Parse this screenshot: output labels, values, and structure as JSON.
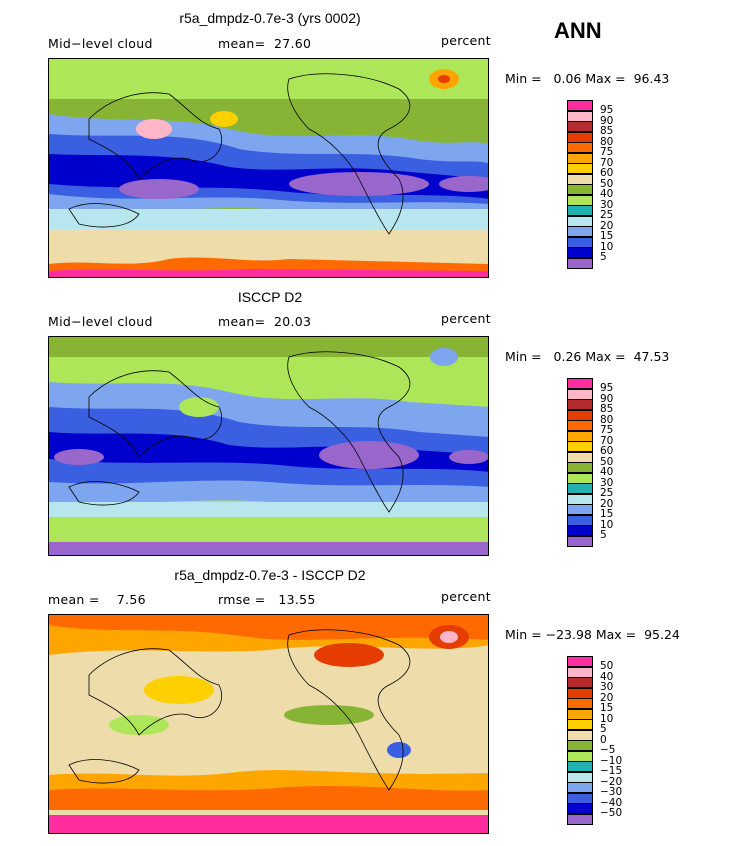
{
  "season": "ANN",
  "colors_abs": [
    "#9966cc",
    "#0000cc",
    "#3a5fe0",
    "#7ea6ee",
    "#b8e6ee",
    "#22b0b0",
    "#aee65a",
    "#88b436",
    "#eedcaa",
    "#ffd000",
    "#ffa500",
    "#ff6a00",
    "#e63c00",
    "#b42c2c",
    "#ffb6c8",
    "#ff2d9e"
  ],
  "colors_diff": [
    "#9966cc",
    "#0000cc",
    "#3a5fe0",
    "#7ea6ee",
    "#b8e6ee",
    "#22b0b0",
    "#aee65a",
    "#88b436",
    "#eedcaa",
    "#ffd000",
    "#ffa500",
    "#ff6a00",
    "#e63c00",
    "#b42c2c",
    "#ffb6c8",
    "#ff2d9e"
  ],
  "panels": [
    {
      "title": "r5a_dmpdz-0.7e-3 (yrs 0002)",
      "left_label": "Mid−level cloud",
      "stat_label": "mean=  27.60",
      "units": "percent",
      "minmax": "Min =   0.06 Max =  96.43",
      "levels": [
        "95",
        "90",
        "85",
        "80",
        "75",
        "70",
        "60",
        "50",
        "40",
        "30",
        "25",
        "20",
        "15",
        "10",
        "5"
      ]
    },
    {
      "title": "ISCCP D2",
      "left_label": "Mid−level cloud",
      "stat_label": "mean=  20.03",
      "units": "percent",
      "minmax": "Min =   0.26 Max =  47.53",
      "levels": [
        "95",
        "90",
        "85",
        "80",
        "75",
        "70",
        "60",
        "50",
        "40",
        "30",
        "25",
        "20",
        "15",
        "10",
        "5"
      ]
    },
    {
      "title": "r5a_dmpdz-0.7e-3 - ISCCP D2",
      "left_label": "mean =    7.56",
      "stat_label": "rmse =   13.55",
      "units": "percent",
      "minmax": "Min = −23.98 Max =  95.24",
      "levels": [
        "50",
        "40",
        "30",
        "20",
        "15",
        "10",
        "5",
        "0",
        "−5",
        "−10",
        "−15",
        "−20",
        "−30",
        "−40",
        "−50"
      ]
    }
  ]
}
